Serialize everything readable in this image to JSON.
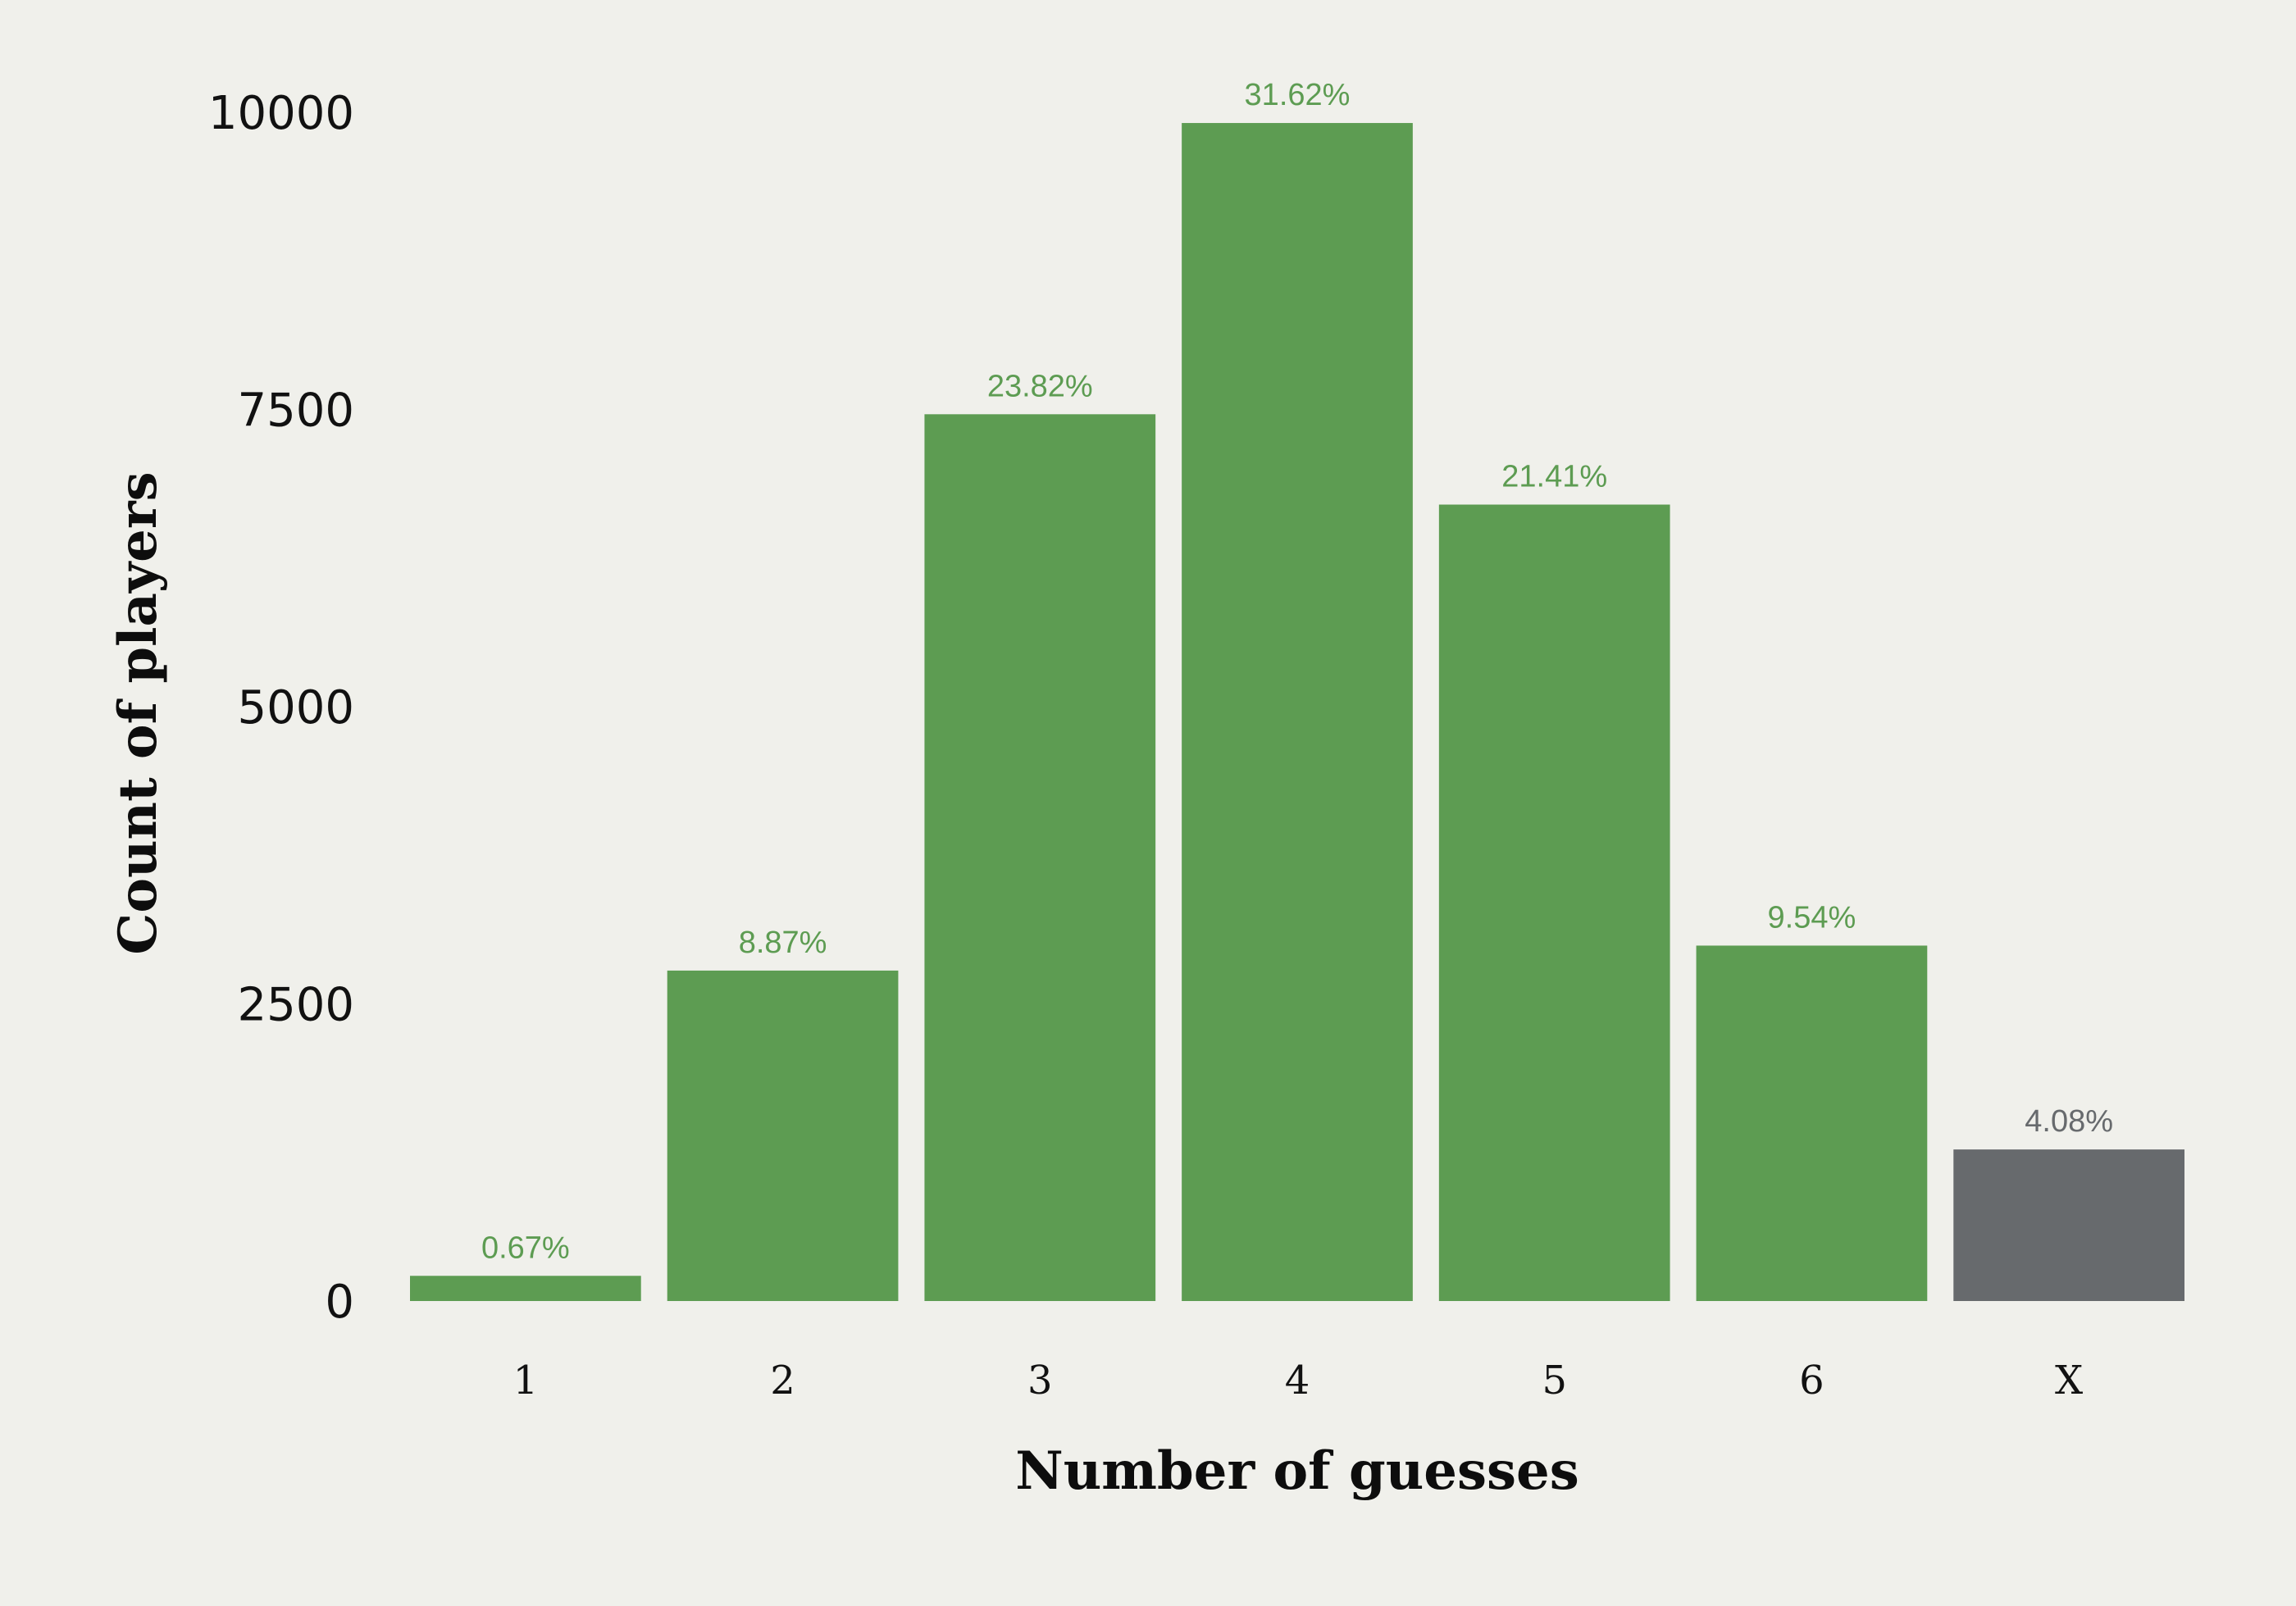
{
  "chart_data": {
    "type": "bar",
    "categories": [
      "1",
      "2",
      "3",
      "4",
      "5",
      "6",
      "X"
    ],
    "values": [
      212,
      2780,
      7460,
      9910,
      6700,
      2990,
      1275
    ],
    "percent_labels": [
      "0.67%",
      "8.87%",
      "23.82%",
      "31.62%",
      "21.41%",
      "9.54%",
      "4.08%"
    ],
    "highlight": [
      false,
      false,
      false,
      false,
      false,
      false,
      true
    ],
    "title": "",
    "xlabel": "Number of guesses",
    "ylabel": "Count of players",
    "ylim": [
      0,
      10000
    ],
    "yticks": [
      "0",
      "2500",
      "5000",
      "7500",
      "10000"
    ],
    "ytick_values": [
      0,
      2500,
      5000,
      7500,
      10000
    ],
    "grid": false,
    "legend": "none",
    "colors": {
      "bar": "#5d9c52",
      "highlight_bar": "#676a6d",
      "label": "#5d9c52",
      "highlight_label": "#676a6d",
      "background": "#f0f0eb"
    }
  }
}
